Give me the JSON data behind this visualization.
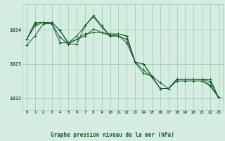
{
  "background_color": "#d4ede0",
  "grid_color": "#a0c8b4",
  "line_color": "#1a5c2a",
  "marker_color": "#1a5c2a",
  "title": "Graphe pression niveau de la mer (hPa)",
  "xlim": [
    -0.5,
    23.5
  ],
  "ylim": [
    1021.65,
    1024.75
  ],
  "yticks": [
    1022,
    1023,
    1024
  ],
  "xticks": [
    0,
    1,
    2,
    3,
    4,
    5,
    6,
    7,
    8,
    9,
    10,
    11,
    12,
    13,
    14,
    15,
    16,
    17,
    18,
    19,
    20,
    21,
    22,
    23
  ],
  "series": [
    [
      1023.55,
      1023.82,
      1024.18,
      1024.18,
      1023.78,
      1023.58,
      1023.58,
      1024.12,
      1024.38,
      1024.08,
      1023.82,
      1023.82,
      1023.72,
      1023.05,
      1023.0,
      1022.65,
      1022.45,
      1022.28,
      1022.5,
      1022.5,
      1022.5,
      1022.5,
      1022.35,
      1022.02
    ],
    [
      1023.72,
      1024.18,
      1024.22,
      1024.22,
      1023.98,
      1023.58,
      1023.72,
      1023.88,
      1023.92,
      1023.92,
      1023.88,
      1023.88,
      1023.82,
      1023.05,
      1022.72,
      1022.65,
      1022.28,
      1022.28,
      1022.55,
      1022.55,
      1022.55,
      1022.55,
      1022.55,
      1022.02
    ],
    [
      1023.72,
      1024.12,
      1024.22,
      1024.18,
      1023.62,
      1023.62,
      1023.82,
      1024.12,
      1024.42,
      1024.12,
      1023.82,
      1023.82,
      1023.62,
      1023.05,
      1023.0,
      1022.62,
      1022.28,
      1022.28,
      1022.55,
      1022.55,
      1022.55,
      1022.55,
      1022.38,
      1022.02
    ],
    [
      1023.72,
      1024.22,
      1024.22,
      1024.22,
      1023.98,
      1023.62,
      1023.72,
      1023.82,
      1024.02,
      1023.92,
      1023.82,
      1023.88,
      1023.82,
      1023.05,
      1022.82,
      1022.62,
      1022.28,
      1022.28,
      1022.55,
      1022.55,
      1022.55,
      1022.55,
      1022.48,
      1022.02
    ]
  ]
}
